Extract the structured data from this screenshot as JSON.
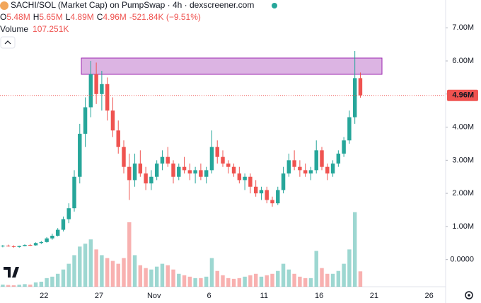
{
  "chart_data": {
    "type": "candlestick",
    "title": "SACHI/SOL (Market Cap) on PumpSwap · 4h · dexscreener.com",
    "legend_values": [
      {
        "key": "O",
        "text": "5.48M"
      },
      {
        "key": "H",
        "text": "5.65M"
      },
      {
        "key": "L",
        "text": "4.89M"
      },
      {
        "key": "C",
        "text": "4.96M"
      }
    ],
    "change_text": "-521.84K (−9.51%)",
    "volume_legend": {
      "name": "Volume",
      "text": "107.251K"
    },
    "categories": [
      null,
      null,
      null,
      null,
      null,
      null,
      null,
      null,
      "22",
      null,
      null,
      null,
      null,
      null,
      null,
      null,
      null,
      null,
      "27",
      null,
      null,
      null,
      null,
      null,
      null,
      null,
      null,
      null,
      "Nov",
      null,
      null,
      null,
      null,
      null,
      null,
      null,
      null,
      null,
      "6",
      null,
      null,
      null,
      null,
      null,
      null,
      null,
      null,
      null,
      "11",
      null,
      null,
      null,
      null,
      null,
      null,
      null,
      null,
      null,
      "16",
      null,
      null,
      null,
      null,
      null,
      null,
      null,
      null,
      null,
      "21",
      null,
      null,
      null,
      null,
      null,
      null,
      null,
      null,
      null,
      "26",
      null,
      null
    ],
    "open": [
      400000,
      420000,
      400000,
      380000,
      410000,
      440000,
      430000,
      500000,
      530000,
      640000,
      720000,
      900000,
      1220000,
      1550000,
      2500000,
      3800000,
      4600000,
      5600000,
      5000000,
      5300000,
      4500000,
      3900000,
      3400000,
      2800000,
      2400000,
      2900000,
      2600000,
      2300000,
      2500000,
      2900000,
      3100000,
      2900000,
      2500000,
      2800000,
      2700000,
      2600000,
      2700000,
      2500000,
      2700000,
      3400000,
      3100000,
      2900000,
      2800000,
      2600000,
      2400000,
      2500000,
      2200000,
      2000000,
      2100000,
      1800000,
      1700000,
      2100000,
      2600000,
      3000000,
      2800000,
      2700000,
      2600000,
      2700000,
      3300000,
      2800000,
      2600000,
      2900000,
      3200000,
      3600000,
      4300000,
      5480000,
      null,
      null,
      null,
      null,
      null,
      null,
      null,
      null,
      null,
      null,
      null,
      null,
      null,
      null,
      null
    ],
    "high": [
      440000,
      450000,
      430000,
      420000,
      460000,
      470000,
      520000,
      560000,
      680000,
      780000,
      950000,
      1300000,
      1700000,
      2700000,
      4100000,
      4900000,
      6000000,
      5950000,
      5700000,
      5500000,
      4900000,
      4200000,
      3600000,
      3200000,
      3200000,
      3300000,
      2800000,
      2700000,
      3000000,
      3300000,
      3400000,
      3000000,
      2900000,
      3100000,
      2900000,
      2800000,
      2900000,
      2800000,
      3900000,
      3600000,
      3300000,
      3000000,
      2900000,
      2800000,
      2600000,
      2600000,
      2400000,
      2200000,
      2200000,
      1900000,
      2200000,
      2800000,
      3200000,
      3300000,
      3000000,
      2900000,
      2800000,
      3600000,
      3400000,
      2900000,
      3000000,
      3300000,
      3700000,
      4500000,
      6300000,
      5650000,
      null,
      null,
      null,
      null,
      null,
      null,
      null,
      null,
      null,
      null,
      null,
      null,
      null,
      null,
      null
    ],
    "low": [
      370000,
      390000,
      360000,
      360000,
      400000,
      410000,
      420000,
      470000,
      510000,
      600000,
      700000,
      850000,
      1100000,
      1450000,
      2300000,
      3400000,
      4300000,
      4700000,
      4500000,
      4200000,
      3700000,
      3200000,
      2600000,
      1800000,
      2200000,
      2500000,
      2100000,
      2100000,
      2400000,
      2700000,
      2800000,
      2300000,
      2400000,
      2600000,
      2400000,
      2300000,
      2400000,
      2300000,
      2600000,
      2900000,
      2800000,
      2600000,
      2500000,
      2300000,
      2100000,
      2000000,
      1900000,
      1800000,
      1700000,
      1600000,
      1650000,
      2000000,
      2500000,
      2700000,
      2500000,
      2500000,
      2400000,
      2600000,
      2700000,
      2400000,
      2500000,
      2800000,
      3100000,
      3500000,
      4100000,
      4890000,
      null,
      null,
      null,
      null,
      null,
      null,
      null,
      null,
      null,
      null,
      null,
      null,
      null,
      null,
      null
    ],
    "close": [
      420000,
      400000,
      380000,
      410000,
      440000,
      430000,
      500000,
      530000,
      640000,
      720000,
      900000,
      1220000,
      1550000,
      2500000,
      3800000,
      4600000,
      5600000,
      5000000,
      5300000,
      4500000,
      3900000,
      3400000,
      2800000,
      2400000,
      2900000,
      2600000,
      2300000,
      2500000,
      2900000,
      3100000,
      2900000,
      2500000,
      2800000,
      2700000,
      2600000,
      2700000,
      2500000,
      2700000,
      3400000,
      3100000,
      2900000,
      2800000,
      2600000,
      2400000,
      2500000,
      2200000,
      2000000,
      2100000,
      1800000,
      1700000,
      2100000,
      2600000,
      3000000,
      2800000,
      2700000,
      2600000,
      2700000,
      3300000,
      2800000,
      2600000,
      2900000,
      3200000,
      3600000,
      4300000,
      5480000,
      4960000,
      null,
      null,
      null,
      null,
      null,
      null,
      null,
      null,
      null,
      null,
      null,
      null,
      null,
      null,
      null
    ],
    "volume": [
      15000,
      12000,
      10000,
      14000,
      18000,
      15000,
      30000,
      35000,
      60000,
      70000,
      90000,
      120000,
      160000,
      220000,
      280000,
      300000,
      330000,
      260000,
      220000,
      200000,
      180000,
      160000,
      200000,
      450000,
      220000,
      150000,
      130000,
      120000,
      140000,
      160000,
      150000,
      120000,
      90000,
      80000,
      70000,
      60000,
      60000,
      70000,
      200000,
      110000,
      80000,
      60000,
      55000,
      60000,
      70000,
      80000,
      90000,
      70000,
      80000,
      90000,
      110000,
      160000,
      120000,
      90000,
      70000,
      60000,
      60000,
      250000,
      130000,
      90000,
      90000,
      110000,
      160000,
      260000,
      520000,
      107251,
      null,
      null,
      null,
      null,
      null,
      null,
      null,
      null,
      null,
      null,
      null,
      null,
      null,
      null,
      null
    ],
    "up_color": "#26a69a",
    "down_color": "#ef5350",
    "ylim": [
      -820000,
      7840000
    ],
    "yticks": [
      {
        "value": 0,
        "label": "0.0000"
      },
      {
        "value": 1000000,
        "label": "1.00M"
      },
      {
        "value": 2000000,
        "label": "2.00M"
      },
      {
        "value": 3000000,
        "label": "3.00M"
      },
      {
        "value": 4000000,
        "label": "4.00M"
      },
      {
        "value": 5000000,
        "label": "5.00M"
      },
      {
        "value": 6000000,
        "label": "6.00M"
      },
      {
        "value": 7000000,
        "label": "7.00M"
      }
    ],
    "y2lim": [
      0,
      2000000
    ],
    "last_price": {
      "value": 4960000,
      "label": "4.96M"
    },
    "grid": false
  }
}
